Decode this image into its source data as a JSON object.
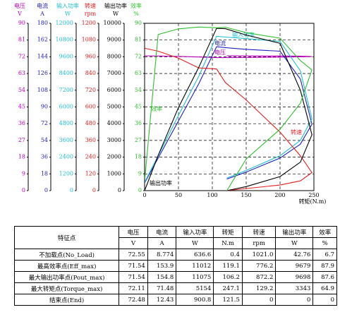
{
  "chart_data": {
    "type": "line",
    "axes": [
      {
        "name": "电压",
        "unit": "V",
        "color": "#c000c0",
        "lim": [
          0,
          90
        ],
        "ticks": [
          0,
          9,
          18,
          27,
          36,
          45,
          54,
          63,
          72,
          81,
          90
        ]
      },
      {
        "name": "电流",
        "unit": "A",
        "color": "#2020c0",
        "lim": [
          0,
          180
        ],
        "ticks": [
          0,
          18,
          36,
          54,
          72,
          90,
          108,
          126,
          144,
          162,
          180
        ]
      },
      {
        "name": "输入功率",
        "unit": "W",
        "color": "#20c0d0",
        "lim": [
          0,
          12000
        ],
        "ticks": [
          0,
          1200,
          2400,
          3600,
          4800,
          6000,
          7200,
          8400,
          9600,
          10800,
          12000
        ]
      },
      {
        "name": "转速",
        "unit": "rpm",
        "color": "#e02020",
        "lim": [
          0,
          1200
        ],
        "ticks": [
          0,
          120,
          240,
          360,
          480,
          600,
          720,
          840,
          960,
          1080,
          1200
        ]
      },
      {
        "name": "输出功率",
        "unit": "W",
        "color": "#000000",
        "lim": [
          0,
          10000
        ],
        "ticks": [
          0,
          1000,
          2000,
          3000,
          4000,
          5000,
          6000,
          7000,
          8000,
          9000,
          10000
        ]
      },
      {
        "name": "效率",
        "unit": "%",
        "color": "#30c030",
        "lim": [
          0,
          90
        ],
        "ticks": [
          0,
          9,
          18,
          27,
          36,
          45,
          54,
          63,
          72,
          81,
          90
        ]
      }
    ],
    "x_label": "转矩(N.m)",
    "xlim": [
      0,
      250
    ],
    "xticks": [
      0,
      50,
      100,
      150,
      200,
      250
    ],
    "grid": true,
    "x": [
      0.4,
      20,
      50,
      80,
      106.2,
      119.1,
      150,
      200,
      230,
      247.1,
      230,
      200,
      150,
      121.5
    ],
    "series": [
      {
        "name": "电压",
        "axis": 0,
        "color": "#c000c0",
        "values": [
          72.55,
          72.4,
          72.2,
          71.9,
          71.54,
          71.54,
          71.6,
          71.8,
          72.0,
          72.11,
          72.3,
          72.4,
          72.45,
          72.48
        ]
      },
      {
        "name": "电流",
        "axis": 1,
        "color": "#2020c0",
        "values": [
          8.774,
          35,
          75,
          115,
          154.8,
          153.9,
          152,
          150,
          120,
          71.48,
          50,
          35,
          20,
          12.43
        ]
      },
      {
        "name": "输入功率",
        "axis": 2,
        "color": "#20c0d0",
        "values": [
          636.6,
          2500,
          5400,
          8200,
          11075,
          11012,
          10900,
          10700,
          8600,
          5154,
          3600,
          2500,
          1450,
          900.8
        ]
      },
      {
        "name": "转速",
        "axis": 3,
        "color": "#e02020",
        "values": [
          1021,
          1000,
          950,
          880,
          872.2,
          776.2,
          650,
          420,
          250,
          129.2,
          70,
          40,
          15,
          0
        ]
      },
      {
        "name": "输出功率",
        "axis": 4,
        "color": "#000000",
        "values": [
          42.76,
          2100,
          4970,
          7370,
          9698,
          9679,
          9300,
          8800,
          6000,
          3343,
          1700,
          840,
          240,
          0
        ]
      },
      {
        "name": "效率",
        "axis": 5,
        "color": "#30c030",
        "values": [
          6.7,
          84,
          87,
          88,
          87.6,
          87.9,
          85,
          82,
          70,
          64.9,
          47,
          33,
          17,
          0
        ]
      }
    ]
  },
  "table": {
    "header": [
      "特征点",
      "电压",
      "电流",
      "输入功率",
      "转矩",
      "转速",
      "输出功率",
      "效率"
    ],
    "units": [
      "V",
      "A",
      "W",
      "N.m",
      "rpm",
      "W",
      "%"
    ],
    "rows": [
      [
        "不加载点(No_Load)",
        "72.55",
        "8.774",
        "636.6",
        "0.4",
        "1021.0",
        "42.76",
        "6.7"
      ],
      [
        "最高效率点(Eff_max)",
        "71.54",
        "153.9",
        "11012",
        "119.1",
        "776.2",
        "9679",
        "87.9"
      ],
      [
        "最大输出功率点(Pout_max)",
        "71.54",
        "154.8",
        "11075",
        "106.2",
        "872.2",
        "9698",
        "87.6"
      ],
      [
        "最大转矩点(Torque_max)",
        "72.11",
        "71.48",
        "5154",
        "247.1",
        "129.2",
        "3343",
        "64.9"
      ],
      [
        "结束点(End)",
        "72.48",
        "12.43",
        "900.8",
        "121.5",
        "0",
        "0",
        "0"
      ]
    ]
  }
}
